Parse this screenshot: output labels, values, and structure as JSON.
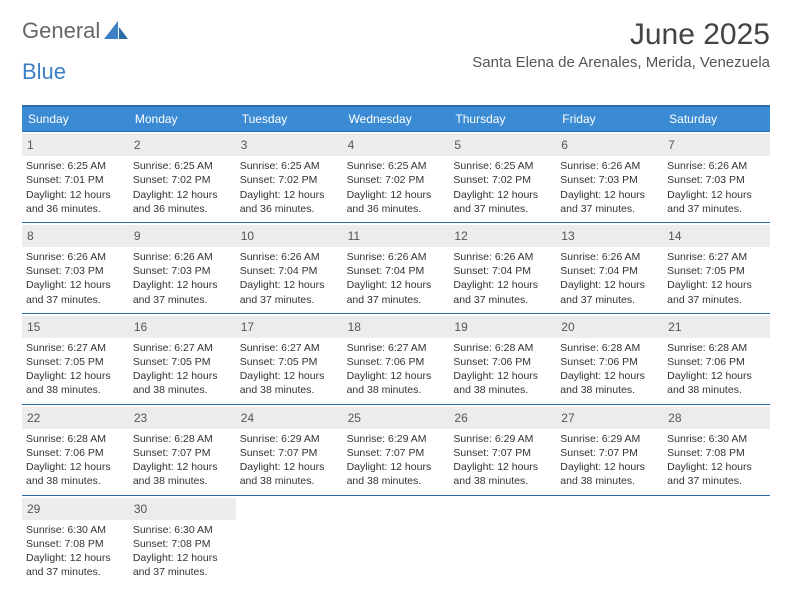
{
  "brand": {
    "general": "General",
    "blue": "Blue"
  },
  "title": "June 2025",
  "location": "Santa Elena de Arenales, Merida, Venezuela",
  "colors": {
    "header_bg": "#3b8bd4",
    "border": "#2d6da8",
    "daynum_bg": "#ececec",
    "text": "#333333",
    "logo_gray": "#666666",
    "logo_blue": "#3b7fc4"
  },
  "weekdays": [
    "Sunday",
    "Monday",
    "Tuesday",
    "Wednesday",
    "Thursday",
    "Friday",
    "Saturday"
  ],
  "days": [
    {
      "n": 1,
      "sunrise": "6:25 AM",
      "sunset": "7:01 PM",
      "daylight": "12 hours and 36 minutes."
    },
    {
      "n": 2,
      "sunrise": "6:25 AM",
      "sunset": "7:02 PM",
      "daylight": "12 hours and 36 minutes."
    },
    {
      "n": 3,
      "sunrise": "6:25 AM",
      "sunset": "7:02 PM",
      "daylight": "12 hours and 36 minutes."
    },
    {
      "n": 4,
      "sunrise": "6:25 AM",
      "sunset": "7:02 PM",
      "daylight": "12 hours and 36 minutes."
    },
    {
      "n": 5,
      "sunrise": "6:25 AM",
      "sunset": "7:02 PM",
      "daylight": "12 hours and 37 minutes."
    },
    {
      "n": 6,
      "sunrise": "6:26 AM",
      "sunset": "7:03 PM",
      "daylight": "12 hours and 37 minutes."
    },
    {
      "n": 7,
      "sunrise": "6:26 AM",
      "sunset": "7:03 PM",
      "daylight": "12 hours and 37 minutes."
    },
    {
      "n": 8,
      "sunrise": "6:26 AM",
      "sunset": "7:03 PM",
      "daylight": "12 hours and 37 minutes."
    },
    {
      "n": 9,
      "sunrise": "6:26 AM",
      "sunset": "7:03 PM",
      "daylight": "12 hours and 37 minutes."
    },
    {
      "n": 10,
      "sunrise": "6:26 AM",
      "sunset": "7:04 PM",
      "daylight": "12 hours and 37 minutes."
    },
    {
      "n": 11,
      "sunrise": "6:26 AM",
      "sunset": "7:04 PM",
      "daylight": "12 hours and 37 minutes."
    },
    {
      "n": 12,
      "sunrise": "6:26 AM",
      "sunset": "7:04 PM",
      "daylight": "12 hours and 37 minutes."
    },
    {
      "n": 13,
      "sunrise": "6:26 AM",
      "sunset": "7:04 PM",
      "daylight": "12 hours and 37 minutes."
    },
    {
      "n": 14,
      "sunrise": "6:27 AM",
      "sunset": "7:05 PM",
      "daylight": "12 hours and 37 minutes."
    },
    {
      "n": 15,
      "sunrise": "6:27 AM",
      "sunset": "7:05 PM",
      "daylight": "12 hours and 38 minutes."
    },
    {
      "n": 16,
      "sunrise": "6:27 AM",
      "sunset": "7:05 PM",
      "daylight": "12 hours and 38 minutes."
    },
    {
      "n": 17,
      "sunrise": "6:27 AM",
      "sunset": "7:05 PM",
      "daylight": "12 hours and 38 minutes."
    },
    {
      "n": 18,
      "sunrise": "6:27 AM",
      "sunset": "7:06 PM",
      "daylight": "12 hours and 38 minutes."
    },
    {
      "n": 19,
      "sunrise": "6:28 AM",
      "sunset": "7:06 PM",
      "daylight": "12 hours and 38 minutes."
    },
    {
      "n": 20,
      "sunrise": "6:28 AM",
      "sunset": "7:06 PM",
      "daylight": "12 hours and 38 minutes."
    },
    {
      "n": 21,
      "sunrise": "6:28 AM",
      "sunset": "7:06 PM",
      "daylight": "12 hours and 38 minutes."
    },
    {
      "n": 22,
      "sunrise": "6:28 AM",
      "sunset": "7:06 PM",
      "daylight": "12 hours and 38 minutes."
    },
    {
      "n": 23,
      "sunrise": "6:28 AM",
      "sunset": "7:07 PM",
      "daylight": "12 hours and 38 minutes."
    },
    {
      "n": 24,
      "sunrise": "6:29 AM",
      "sunset": "7:07 PM",
      "daylight": "12 hours and 38 minutes."
    },
    {
      "n": 25,
      "sunrise": "6:29 AM",
      "sunset": "7:07 PM",
      "daylight": "12 hours and 38 minutes."
    },
    {
      "n": 26,
      "sunrise": "6:29 AM",
      "sunset": "7:07 PM",
      "daylight": "12 hours and 38 minutes."
    },
    {
      "n": 27,
      "sunrise": "6:29 AM",
      "sunset": "7:07 PM",
      "daylight": "12 hours and 38 minutes."
    },
    {
      "n": 28,
      "sunrise": "6:30 AM",
      "sunset": "7:08 PM",
      "daylight": "12 hours and 37 minutes."
    },
    {
      "n": 29,
      "sunrise": "6:30 AM",
      "sunset": "7:08 PM",
      "daylight": "12 hours and 37 minutes."
    },
    {
      "n": 30,
      "sunrise": "6:30 AM",
      "sunset": "7:08 PM",
      "daylight": "12 hours and 37 minutes."
    }
  ],
  "labels": {
    "sunrise": "Sunrise:",
    "sunset": "Sunset:",
    "daylight": "Daylight:"
  }
}
